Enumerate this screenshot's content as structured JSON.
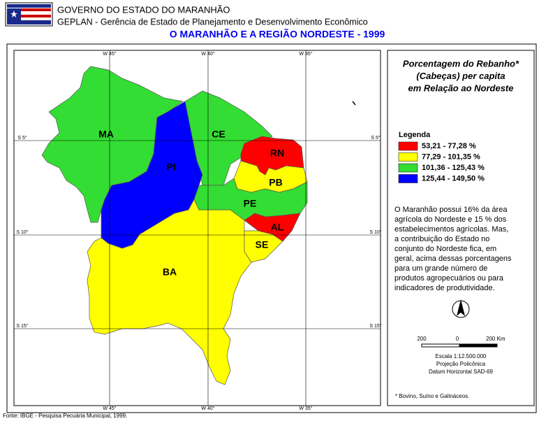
{
  "header": {
    "agency": "GOVERNO DO ESTADO DO MARANHÃO",
    "department": "GEPLAN - Gerência de Estado de Planejamento e Desenvolvimento Econômico",
    "title": "O MARANHÃO E A REGIÃO NORDESTE - 1999"
  },
  "map": {
    "grid": {
      "longitudes": [
        "W 45°",
        "W 40°",
        "W 35°"
      ],
      "latitudes": [
        "S 5°",
        "S 10°",
        "S 15°"
      ]
    },
    "states": [
      {
        "label": "BA",
        "color": "#ffff00"
      },
      {
        "label": "MA",
        "color": "#33dd33"
      },
      {
        "label": "CE",
        "color": "#33dd33"
      },
      {
        "label": "PE",
        "color": "#33dd33"
      },
      {
        "label": "PB",
        "color": "#ffff00"
      },
      {
        "label": "SE",
        "color": "#ffff00"
      },
      {
        "label": "AL",
        "color": "#ff0000"
      },
      {
        "label": "RN",
        "color": "#ff0000"
      },
      {
        "label": "PI",
        "color": "#0000ff"
      }
    ]
  },
  "legend": {
    "title_lines": [
      "Porcentagem do Rebanho*",
      "(Cabeças) per capita",
      "em Relação ao Nordeste"
    ],
    "heading": "Legenda",
    "items": [
      {
        "label": "53,21 - 77,28 %",
        "color": "#ff0000"
      },
      {
        "label": "77,29 - 101,35 %",
        "color": "#ffff00"
      },
      {
        "label": "101,36 - 125,43 %",
        "color": "#33dd33"
      },
      {
        "label": "125,44 - 149,50 %",
        "color": "#0000ff"
      }
    ]
  },
  "description": [
    "O Maranhão possui 16% da área",
    "agrícola do Nordeste e 15 % dos",
    "estabelecimentos agrícolas. Mas,",
    "a contribuição do Estado no",
    "conjunto do Nordeste fica, em",
    "geral, acima dessas porcentagens",
    "para um grande número de",
    "produtos agropecuários ou para",
    "indicadores de produtividade."
  ],
  "scale": {
    "labels": [
      "200",
      "0",
      "200 Km"
    ],
    "ratio": "Escala 1:12.500.000",
    "projection": "Projeção Policônica",
    "datum": "Datum Horizontal SAD-69"
  },
  "footnote": "* Bovino, Suíno e Galináceos.",
  "source": "Fonte: IBGE - Pesquisa Pecuária Municipal, 1999."
}
